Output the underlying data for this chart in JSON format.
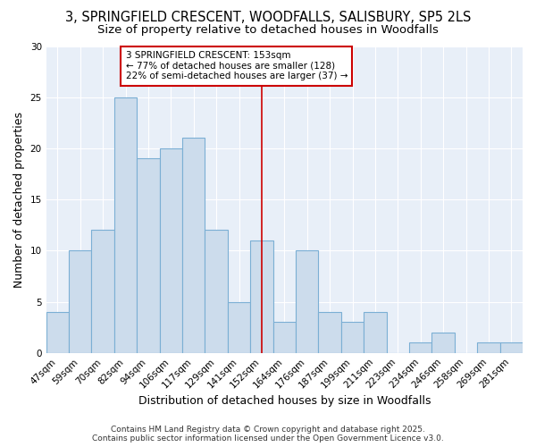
{
  "title_line1": "3, SPRINGFIELD CRESCENT, WOODFALLS, SALISBURY, SP5 2LS",
  "title_line2": "Size of property relative to detached houses in Woodfalls",
  "xlabel": "Distribution of detached houses by size in Woodfalls",
  "ylabel": "Number of detached properties",
  "categories": [
    "47sqm",
    "59sqm",
    "70sqm",
    "82sqm",
    "94sqm",
    "106sqm",
    "117sqm",
    "129sqm",
    "141sqm",
    "152sqm",
    "164sqm",
    "176sqm",
    "187sqm",
    "199sqm",
    "211sqm",
    "223sqm",
    "234sqm",
    "246sqm",
    "258sqm",
    "269sqm",
    "281sqm"
  ],
  "values": [
    4,
    10,
    12,
    25,
    19,
    20,
    21,
    12,
    5,
    11,
    3,
    10,
    4,
    3,
    4,
    0,
    1,
    2,
    0,
    1,
    1
  ],
  "bar_color": "#ccdcec",
  "bar_edge_color": "#7bafd4",
  "vline_x_index": 9,
  "vline_color": "#cc0000",
  "annotation_text": "3 SPRINGFIELD CRESCENT: 153sqm\n← 77% of detached houses are smaller (128)\n22% of semi-detached houses are larger (37) →",
  "annotation_box_color": "#cc0000",
  "ylim": [
    0,
    30
  ],
  "yticks": [
    0,
    5,
    10,
    15,
    20,
    25,
    30
  ],
  "plot_bg_color": "#e8eff8",
  "fig_bg_color": "#ffffff",
  "footer_text": "Contains HM Land Registry data © Crown copyright and database right 2025.\nContains public sector information licensed under the Open Government Licence v3.0.",
  "grid_color": "#ffffff",
  "title_fontsize": 10.5,
  "subtitle_fontsize": 9.5,
  "axis_label_fontsize": 9,
  "tick_fontsize": 7.5,
  "annotation_fontsize": 7.5,
  "footer_fontsize": 6.5
}
